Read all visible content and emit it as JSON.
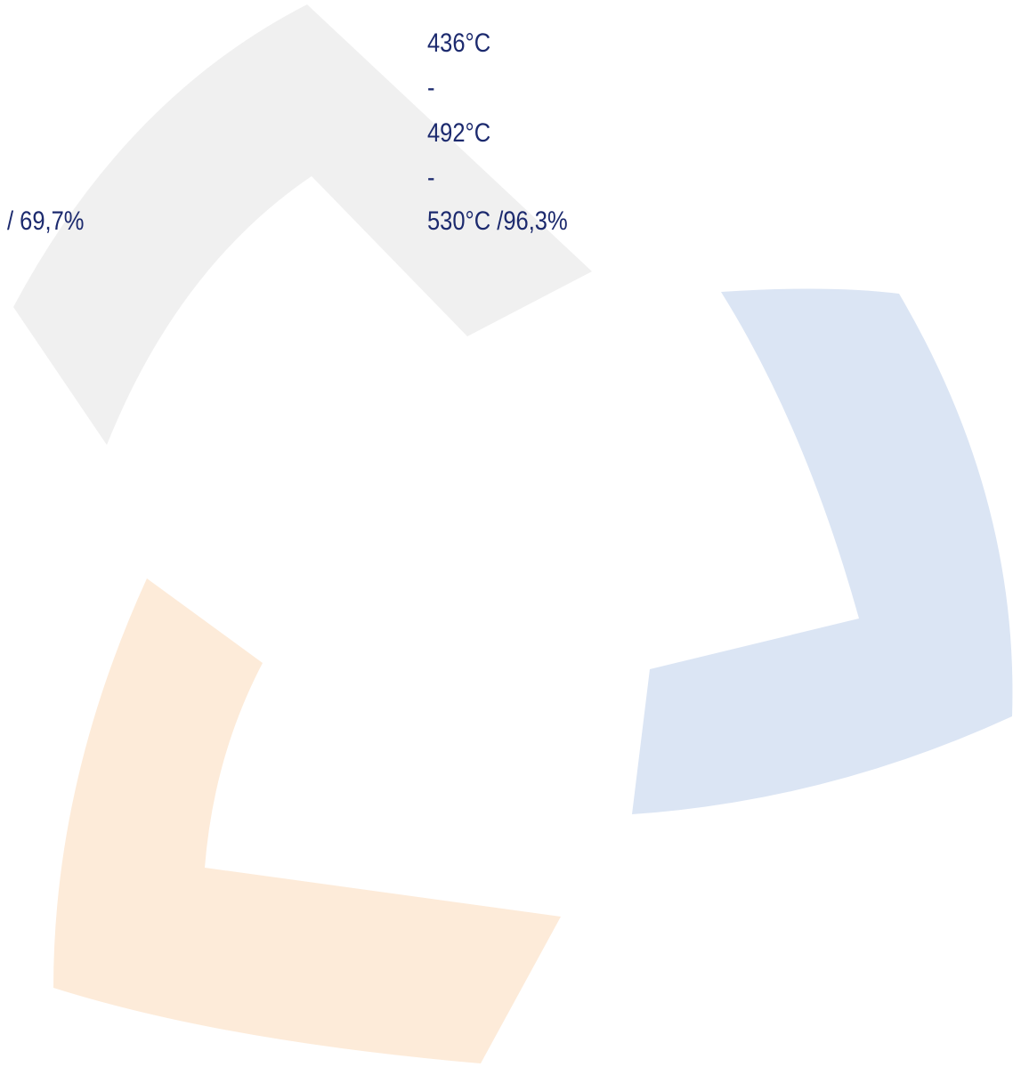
{
  "left_label": "/ 69,7%",
  "right_block": {
    "lines": [
      "436°C",
      "-",
      "492°C",
      "-",
      "530°C /96,3%"
    ]
  }
}
